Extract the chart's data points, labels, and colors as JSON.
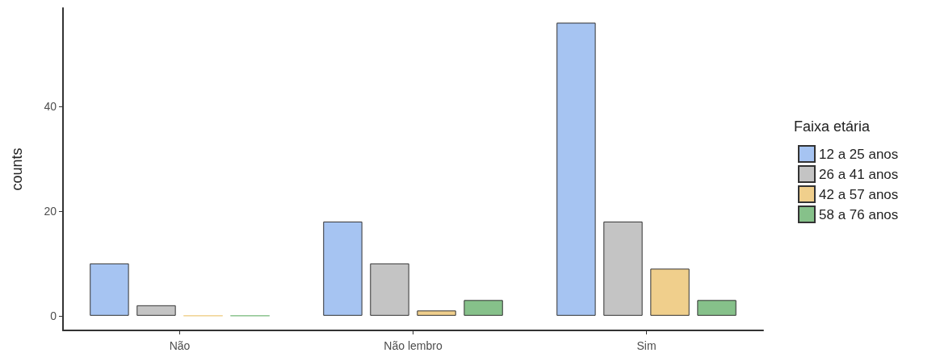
{
  "chart_data": {
    "type": "bar",
    "ylabel": "counts",
    "legend_title": "Faixa etária",
    "categories": [
      "Não",
      "Não lembro",
      "Sim"
    ],
    "series": [
      {
        "name": "12 a 25 anos",
        "color": "#a6c4f2",
        "values": [
          10,
          18,
          56
        ]
      },
      {
        "name": "26 a 41 anos",
        "color": "#c4c4c4",
        "values": [
          2,
          10,
          18
        ]
      },
      {
        "name": "42 a 57 anos",
        "color": "#f0cf8c",
        "values": [
          0,
          1,
          9
        ]
      },
      {
        "name": "58 a 76 anos",
        "color": "#86c18a",
        "values": [
          0,
          3,
          3
        ]
      }
    ],
    "ylim": [
      -2.8,
      58.8
    ],
    "yticks": [
      0,
      20,
      40
    ],
    "grid": false,
    "legend": "right"
  }
}
